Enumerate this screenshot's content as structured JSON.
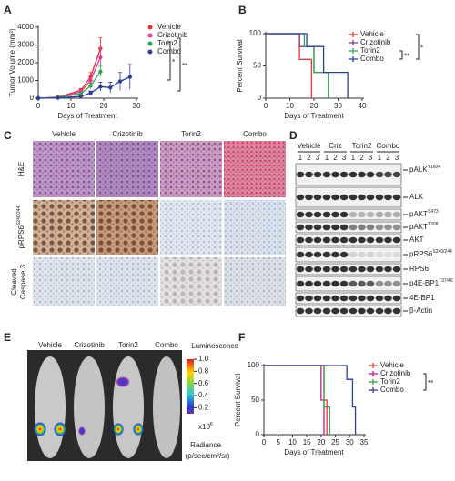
{
  "figure": {
    "panel_labels": [
      "A",
      "B",
      "C",
      "D",
      "E",
      "F"
    ]
  },
  "chart_data": [
    {
      "type": "line",
      "ylabel": "Tumor Volume (mm³)",
      "xlabel": "Days of Treatment",
      "xlim": [
        0,
        30
      ],
      "ylim": [
        0,
        4000
      ],
      "xticks": [
        0,
        10,
        20,
        30
      ],
      "yticks": [
        0,
        1000,
        2000,
        3000,
        4000
      ],
      "series": [
        {
          "name": "Vehicle",
          "color": "#e8312f",
          "x": [
            0,
            6,
            13,
            16,
            19
          ],
          "values": [
            0,
            60,
            450,
            1200,
            2800
          ],
          "errors": [
            0,
            20,
            100,
            250,
            600
          ]
        },
        {
          "name": "Crizotinib",
          "color": "#e23a9a",
          "x": [
            0,
            6,
            13,
            16,
            19
          ],
          "values": [
            0,
            50,
            350,
            1000,
            2300
          ],
          "errors": [
            0,
            20,
            80,
            200,
            500
          ]
        },
        {
          "name": "Torin2",
          "color": "#2ca84a",
          "x": [
            0,
            6,
            13,
            16,
            19
          ],
          "values": [
            0,
            40,
            250,
            700,
            1500
          ],
          "errors": [
            0,
            15,
            60,
            150,
            300
          ]
        },
        {
          "name": "Combo",
          "color": "#2e3d9c",
          "x": [
            0,
            6,
            13,
            16,
            19,
            22,
            25,
            28
          ],
          "values": [
            0,
            20,
            100,
            300,
            650,
            600,
            950,
            1200
          ],
          "errors": [
            0,
            10,
            40,
            100,
            250,
            300,
            500,
            700
          ]
        }
      ],
      "annotations": [
        "*",
        "**"
      ]
    },
    {
      "type": "step",
      "ylabel": "Percent Survival",
      "xlabel": "Days of Treatment",
      "xlim": [
        0,
        40
      ],
      "ylim": [
        0,
        100
      ],
      "xticks": [
        0,
        10,
        20,
        30,
        40
      ],
      "yticks": [
        0,
        50,
        100
      ],
      "series": [
        {
          "name": "Vehicle",
          "color": "#e8312f",
          "x": [
            0,
            14,
            19
          ],
          "values": [
            100,
            60,
            0
          ]
        },
        {
          "name": "Crizotinib",
          "color": "#8b3b8f",
          "x": [
            0,
            14,
            20,
            26
          ],
          "values": [
            100,
            80,
            40,
            0
          ]
        },
        {
          "name": "Torin2",
          "color": "#2ca84a",
          "x": [
            0,
            16,
            20,
            26
          ],
          "values": [
            100,
            80,
            40,
            0
          ]
        },
        {
          "name": "Combo",
          "color": "#2e3d9c",
          "x": [
            0,
            17,
            24,
            34
          ],
          "values": [
            100,
            80,
            40,
            0
          ]
        }
      ],
      "annotations": [
        "*",
        "**"
      ]
    },
    {
      "type": "step",
      "ylabel": "Percent Survival",
      "xlabel": "Days of Treatment",
      "xlim": [
        0,
        35
      ],
      "ylim": [
        0,
        100
      ],
      "xticks": [
        0,
        5,
        10,
        15,
        20,
        25,
        30,
        35
      ],
      "yticks": [
        0,
        50,
        100
      ],
      "series": [
        {
          "name": "Vehicle",
          "color": "#e8312f",
          "x": [
            0,
            21,
            22
          ],
          "values": [
            100,
            50,
            0
          ]
        },
        {
          "name": "Crizotinib",
          "color": "#c2188a",
          "x": [
            0,
            20,
            21
          ],
          "values": [
            100,
            50,
            0
          ]
        },
        {
          "name": "Torin2",
          "color": "#2ca84a",
          "x": [
            0,
            21,
            23
          ],
          "values": [
            100,
            40,
            0
          ]
        },
        {
          "name": "Combo",
          "color": "#2e3d9c",
          "x": [
            0,
            29,
            31,
            32
          ],
          "values": [
            100,
            80,
            40,
            0
          ]
        }
      ],
      "annotations": [
        "**"
      ]
    }
  ],
  "panel_c": {
    "columns": [
      "Vehicle",
      "Crizotinib",
      "Torin2",
      "Combo"
    ],
    "rows": [
      {
        "text": "H&E"
      },
      {
        "text": "pRPS6",
        "sup": "S240/244"
      },
      {
        "lines": [
          "Cleaved",
          "Caspase 3"
        ]
      }
    ]
  },
  "panel_d": {
    "groups": [
      "Vehicle",
      "Criz",
      "Torin2",
      "Combo"
    ],
    "lanes": [
      "1",
      "2",
      "3"
    ],
    "rows": [
      {
        "text": "pALK",
        "sup": "Y1604"
      },
      {
        "text": "ALK"
      },
      {
        "text": "pAKT",
        "sup": "S473"
      },
      {
        "text": "pAKT",
        "sup": "T308"
      },
      {
        "text": "AKT"
      },
      {
        "text": "pRPS6",
        "sup": "S240/244"
      },
      {
        "text": "RPS6"
      },
      {
        "text": "p4E-BP1",
        "sup": "T37/46"
      },
      {
        "text": "4E-BP1"
      },
      {
        "text": "β-Actin"
      }
    ]
  },
  "panel_e": {
    "columns": [
      "Vehicle",
      "Crizotinib",
      "Torin2",
      "Combo"
    ],
    "colorbar": {
      "title": "Luminescence",
      "lim": [
        0.1,
        1.0
      ],
      "ticks": [
        {
          "value": 1,
          "label": "1.0"
        },
        0.8,
        0.6,
        0.4,
        0.2
      ],
      "multiplier": "x10",
      "exponent": "6",
      "unit_title": "Radiance",
      "unit": "(p/sec/cm²/sr)"
    }
  }
}
